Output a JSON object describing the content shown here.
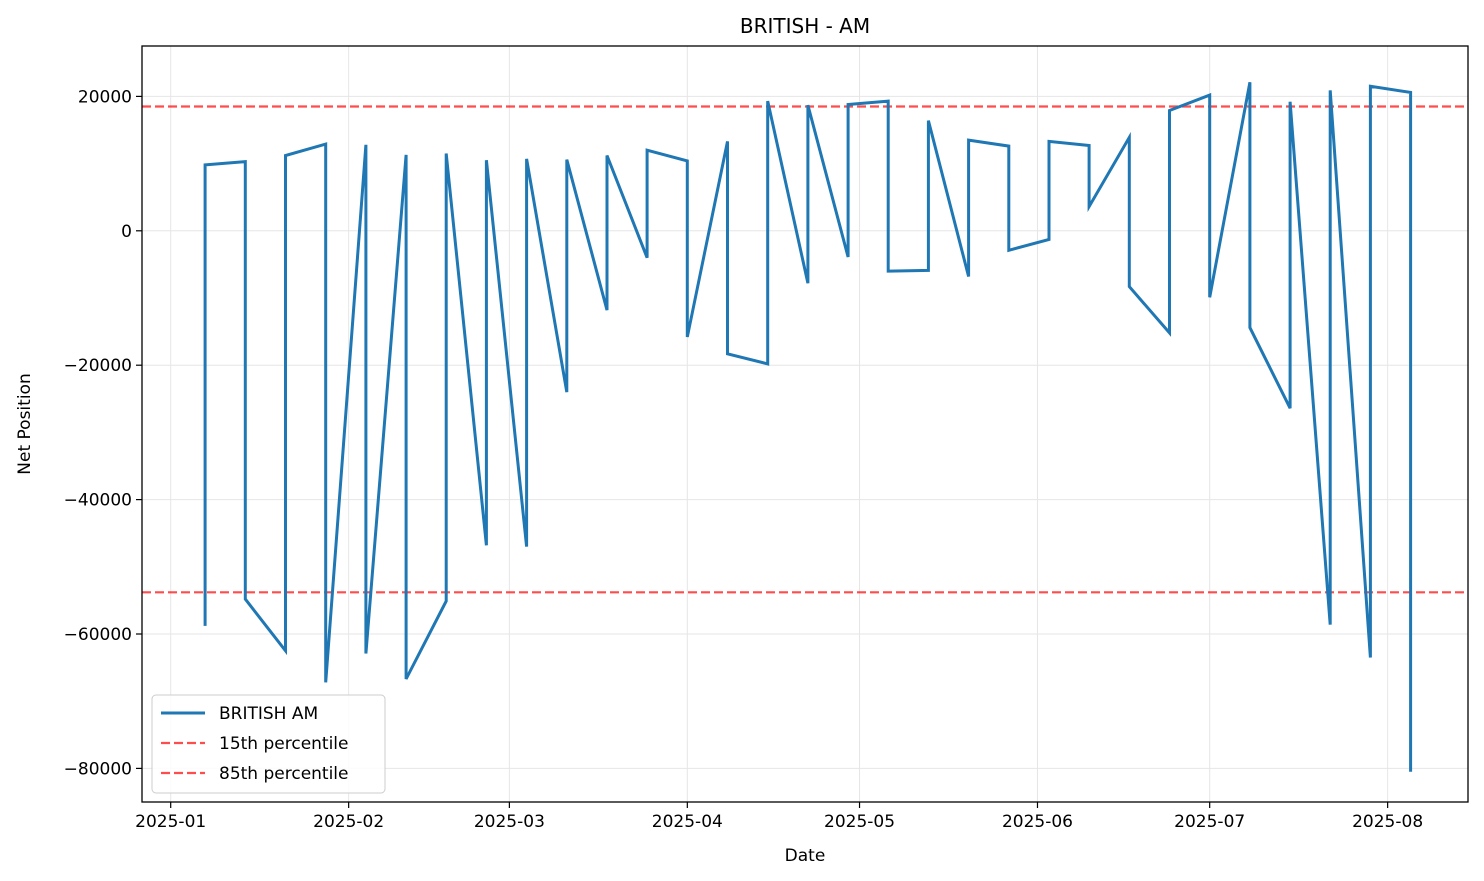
{
  "chart_data": {
    "type": "line",
    "title": "BRITISH - AM",
    "xlabel": "Date",
    "ylabel": "Net Position",
    "xlim": [
      "2024-12-27",
      "2025-08-15"
    ],
    "ylim": [
      -85000,
      27500
    ],
    "grid": true,
    "legend_position": "lower-left",
    "x_ticks": [
      "2025-01-01",
      "2025-02-01",
      "2025-03-01",
      "2025-04-01",
      "2025-05-01",
      "2025-06-01",
      "2025-07-01",
      "2025-08-01"
    ],
    "x_tick_labels": [
      "2025-01",
      "2025-02",
      "2025-03",
      "2025-04",
      "2025-05",
      "2025-06",
      "2025-07",
      "2025-08"
    ],
    "y_ticks": [
      -80000,
      -60000,
      -40000,
      -20000,
      0,
      20000
    ],
    "y_tick_labels": [
      "−80000",
      "−60000",
      "−40000",
      "−20000",
      "0",
      "20000"
    ],
    "series": [
      {
        "name": "BRITISH AM",
        "color": "#1f77b4",
        "style": "solid",
        "points": [
          [
            "2025-01-07",
            -58800
          ],
          [
            "2025-01-07",
            9800
          ],
          [
            "2025-01-14",
            10300
          ],
          [
            "2025-01-14",
            -54800
          ],
          [
            "2025-01-21",
            -62500
          ],
          [
            "2025-01-21",
            11200
          ],
          [
            "2025-01-28",
            12900
          ],
          [
            "2025-01-28",
            -67200
          ],
          [
            "2025-02-04",
            12800
          ],
          [
            "2025-02-04",
            -62900
          ],
          [
            "2025-02-11",
            11300
          ],
          [
            "2025-02-11",
            -66700
          ],
          [
            "2025-02-18",
            -55100
          ],
          [
            "2025-02-18",
            11500
          ],
          [
            "2025-02-25",
            -46800
          ],
          [
            "2025-02-25",
            10500
          ],
          [
            "2025-03-04",
            -47000
          ],
          [
            "2025-03-04",
            10700
          ],
          [
            "2025-03-11",
            -24000
          ],
          [
            "2025-03-11",
            10600
          ],
          [
            "2025-03-18",
            -11800
          ],
          [
            "2025-03-18",
            11200
          ],
          [
            "2025-03-25",
            -4000
          ],
          [
            "2025-03-25",
            12000
          ],
          [
            "2025-04-01",
            10400
          ],
          [
            "2025-04-01",
            -15800
          ],
          [
            "2025-04-08",
            13300
          ],
          [
            "2025-04-08",
            -18300
          ],
          [
            "2025-04-15",
            -19800
          ],
          [
            "2025-04-15",
            19300
          ],
          [
            "2025-04-22",
            -7800
          ],
          [
            "2025-04-22",
            18700
          ],
          [
            "2025-04-29",
            -3900
          ],
          [
            "2025-04-29",
            18800
          ],
          [
            "2025-05-06",
            19300
          ],
          [
            "2025-05-06",
            -6000
          ],
          [
            "2025-05-13",
            -5900
          ],
          [
            "2025-05-13",
            16400
          ],
          [
            "2025-05-20",
            -6800
          ],
          [
            "2025-05-20",
            13500
          ],
          [
            "2025-05-27",
            12600
          ],
          [
            "2025-05-27",
            -2900
          ],
          [
            "2025-06-03",
            -1300
          ],
          [
            "2025-06-03",
            13300
          ],
          [
            "2025-06-10",
            12700
          ],
          [
            "2025-06-10",
            3600
          ],
          [
            "2025-06-17",
            13900
          ],
          [
            "2025-06-17",
            -8300
          ],
          [
            "2025-06-24",
            -15200
          ],
          [
            "2025-06-24",
            17900
          ],
          [
            "2025-07-01",
            20200
          ],
          [
            "2025-07-01",
            -9900
          ],
          [
            "2025-07-08",
            22100
          ],
          [
            "2025-07-08",
            -14400
          ],
          [
            "2025-07-15",
            -26400
          ],
          [
            "2025-07-15",
            19200
          ],
          [
            "2025-07-22",
            -58600
          ],
          [
            "2025-07-22",
            20900
          ],
          [
            "2025-07-29",
            -63500
          ],
          [
            "2025-07-29",
            21500
          ],
          [
            "2025-08-05",
            20600
          ],
          [
            "2025-08-05",
            -80500
          ]
        ]
      },
      {
        "name": "15th percentile",
        "color": "#ff0000",
        "style": "dashed",
        "y": -53800
      },
      {
        "name": "85th percentile",
        "color": "#ff0000",
        "style": "dashed",
        "y": 18500
      }
    ]
  }
}
